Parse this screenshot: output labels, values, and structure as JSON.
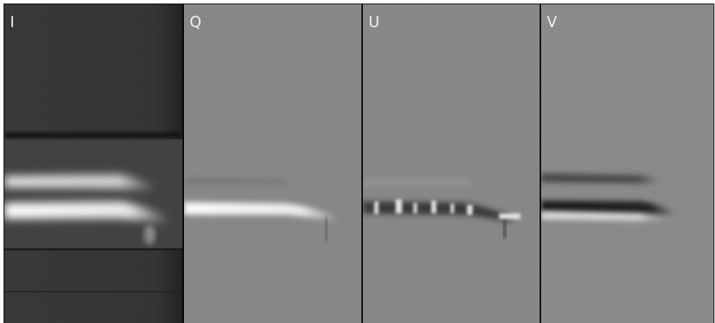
{
  "panels": [
    {
      "label": "I"
    },
    {
      "label": "Q"
    },
    {
      "label": "U"
    },
    {
      "label": "V"
    }
  ]
}
